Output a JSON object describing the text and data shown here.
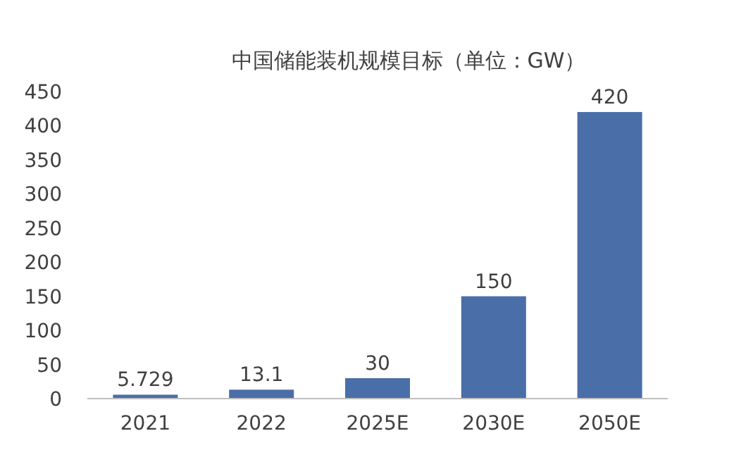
{
  "chart_data": {
    "type": "bar",
    "title": "中国储能装机规模目标（单位：GW）",
    "categories": [
      "2021",
      "2022",
      "2025E",
      "2030E",
      "2050E"
    ],
    "values": [
      5.729,
      13.1,
      30,
      150,
      420
    ],
    "color": "#4a6ea8",
    "ylim": [
      0,
      450
    ],
    "yticks": [
      0,
      50,
      100,
      150,
      200,
      250,
      300,
      350,
      400,
      450
    ],
    "data_labels": true
  }
}
